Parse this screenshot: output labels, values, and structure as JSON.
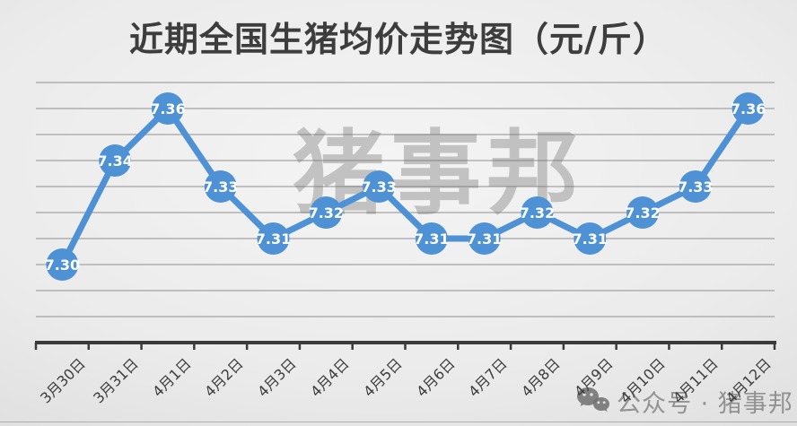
{
  "title": "近期全国生猪均价走势图（元/斤）",
  "watermark_center": "猪事邦",
  "watermark_corner": {
    "icon": "wechat-icon",
    "text": "公众号 · 猪事邦"
  },
  "colors": {
    "series": "#4e91d5",
    "data_label": "#ffffff",
    "gridline": "#a2a2a2",
    "axis": "#3a3a3a",
    "title_text": "#3d3d3d",
    "x_label_text": "#3c3c3c"
  },
  "chart_data": {
    "type": "line",
    "title": "近期全国生猪均价走势图（元/斤）",
    "xlabel": "",
    "ylabel": "",
    "categories": [
      "3月30日",
      "3月31日",
      "4月1日",
      "4月2日",
      "4月3日",
      "4月4日",
      "4月5日",
      "4月6日",
      "4月7日",
      "4月8日",
      "4月9日",
      "4月10日",
      "4月11日",
      "4月12日"
    ],
    "values": [
      7.3,
      7.34,
      7.36,
      7.33,
      7.31,
      7.32,
      7.33,
      7.31,
      7.31,
      7.32,
      7.31,
      7.32,
      7.33,
      7.36
    ],
    "ylim": [
      7.27,
      7.37
    ],
    "gridline_step": 0.01,
    "grid": true,
    "legend": false,
    "data_labels": true,
    "marker": "circle"
  }
}
